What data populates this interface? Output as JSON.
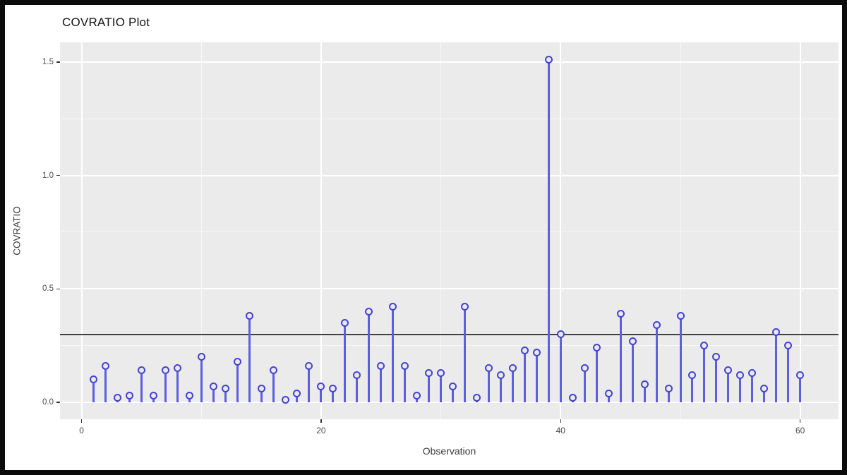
{
  "chart_data": {
    "type": "stem",
    "title": "COVRATIO Plot",
    "xlabel": "Observation",
    "ylabel": "COVRATIO",
    "x": [
      1,
      2,
      3,
      4,
      5,
      6,
      7,
      8,
      9,
      10,
      11,
      12,
      13,
      14,
      15,
      16,
      17,
      18,
      19,
      20,
      21,
      22,
      23,
      24,
      25,
      26,
      27,
      28,
      29,
      30,
      31,
      32,
      33,
      34,
      35,
      36,
      37,
      38,
      39,
      40,
      41,
      42,
      43,
      44,
      45,
      46,
      47,
      48,
      49,
      50,
      51,
      52,
      53,
      54,
      55,
      56,
      57,
      58,
      59,
      60
    ],
    "values": [
      0.1,
      0.16,
      0.02,
      0.03,
      0.14,
      0.03,
      0.14,
      0.15,
      0.03,
      0.2,
      0.07,
      0.06,
      0.18,
      0.38,
      0.06,
      0.14,
      0.01,
      0.04,
      0.16,
      0.07,
      0.06,
      0.35,
      0.12,
      0.4,
      0.16,
      0.42,
      0.16,
      0.03,
      0.13,
      0.13,
      0.07,
      0.42,
      0.02,
      0.15,
      0.12,
      0.15,
      0.23,
      0.22,
      1.51,
      0.3,
      0.02,
      0.15,
      0.24,
      0.04,
      0.39,
      0.27,
      0.08,
      0.34,
      0.06,
      0.38,
      0.12,
      0.25,
      0.2,
      0.14,
      0.12,
      0.13,
      0.06,
      0.31,
      0.25,
      0.12
    ],
    "reference_line": 0.3,
    "xticks": [
      0,
      20,
      40,
      60
    ],
    "xtick_labels": [
      "0",
      "20",
      "40",
      "60"
    ],
    "minor_xticks": [
      10,
      30,
      50
    ],
    "yticks": [
      0,
      0.5,
      1.0,
      1.5
    ],
    "ytick_labels": [
      "0.0",
      "0.5",
      "1.0",
      "1.5"
    ],
    "minor_yticks": [
      0.25,
      0.75,
      1.25
    ],
    "xlim": [
      -1.8,
      63.2
    ],
    "ylim": [
      -0.075,
      1.587
    ],
    "grid": "on",
    "legend": "none",
    "colors": {
      "panel_background": "#ebebeb",
      "grid_major": "#ffffff",
      "stem": "#5e5ee0",
      "marker_ring": "#4343ce",
      "marker_fill": "#e9e9f4",
      "reference_line": "#404040",
      "tick": "#333333",
      "tick_label": "#4d4d4d",
      "axis_title": "#3c3c3c",
      "title": "#111111"
    }
  }
}
